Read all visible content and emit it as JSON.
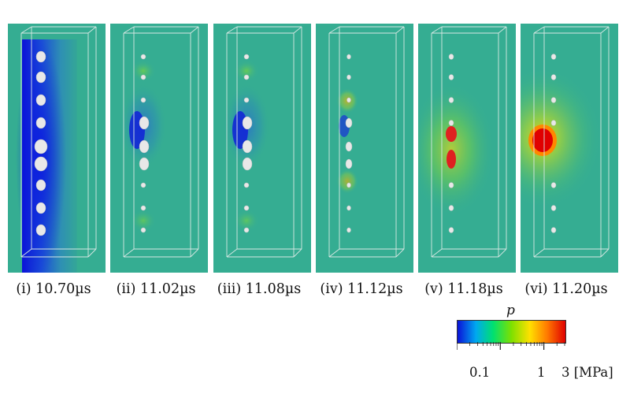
{
  "panels": [
    {
      "label": "(i) 10.70µs",
      "field": "low_pressure_region",
      "bubble_state": "expanded"
    },
    {
      "label": "(ii) 11.02µs",
      "field": "low_pressure_center",
      "bubble_state": "collapsing"
    },
    {
      "label": "(iii) 11.08µs",
      "field": "low_pressure_center",
      "bubble_state": "collapsing"
    },
    {
      "label": "(iv) 11.12µs",
      "field": "weak_pressure_waves",
      "bubble_state": "collapsing"
    },
    {
      "label": "(v) 11.18µs",
      "field": "high_pressure_center",
      "bubble_state": "collapsed"
    },
    {
      "label": "(vi) 11.20µs",
      "field": "high_pressure_peak",
      "bubble_state": "collapsed"
    }
  ],
  "colorbar": {
    "variable": "p",
    "label_min": "0.1",
    "label_mid": "1",
    "label_max": "3 [MPa]",
    "scale": "log",
    "colors": [
      "#0a12d8",
      "#00a8f0",
      "#00e070",
      "#7ee000",
      "#ffe000",
      "#ff7a00",
      "#e00000"
    ]
  },
  "colors": {
    "background_field": "#35ad92",
    "bubble": "#e8e8e8",
    "wireframe": "#d8e8e4"
  }
}
